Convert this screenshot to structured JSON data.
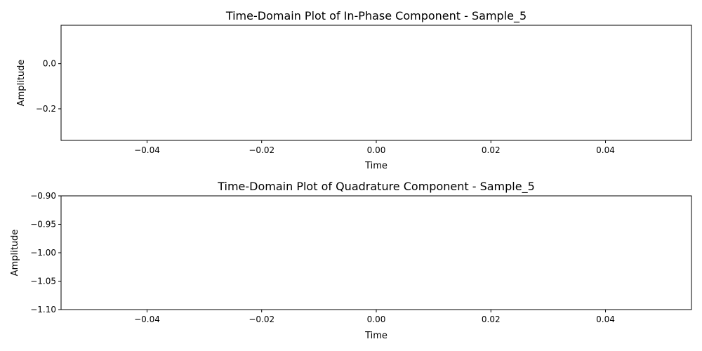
{
  "chart_data": [
    {
      "type": "line",
      "title": "Time-Domain Plot of In-Phase Component - Sample_5",
      "xlabel": "Time",
      "ylabel": "Amplitude",
      "xlim": [
        -0.055,
        0.055
      ],
      "ylim": [
        -0.34,
        0.17
      ],
      "xticks": [
        -0.04,
        -0.02,
        0.0,
        0.02,
        0.04
      ],
      "xtick_labels": [
        "−0.04",
        "−0.02",
        "0.00",
        "0.02",
        "0.04"
      ],
      "yticks": [
        0.0,
        -0.2
      ],
      "ytick_labels": [
        "0.0",
        "−0.2"
      ],
      "grid": false,
      "series": [
        {
          "x": [],
          "y": []
        }
      ]
    },
    {
      "type": "line",
      "title": "Time-Domain Plot of Quadrature Component - Sample_5",
      "xlabel": "Time",
      "ylabel": "Amplitude",
      "xlim": [
        -0.055,
        0.055
      ],
      "ylim": [
        -1.1,
        -0.9
      ],
      "xticks": [
        -0.04,
        -0.02,
        0.0,
        0.02,
        0.04
      ],
      "xtick_labels": [
        "−0.04",
        "−0.02",
        "0.00",
        "0.02",
        "0.04"
      ],
      "yticks": [
        -0.9,
        -0.95,
        -1.0,
        -1.05,
        -1.1
      ],
      "ytick_labels": [
        "−0.90",
        "−0.95",
        "−1.00",
        "−1.05",
        "−1.10"
      ],
      "grid": false,
      "series": [
        {
          "x": [],
          "y": []
        }
      ]
    }
  ],
  "colors": {
    "axes": "#000000",
    "background": "#ffffff",
    "line": "#1f77b4"
  }
}
